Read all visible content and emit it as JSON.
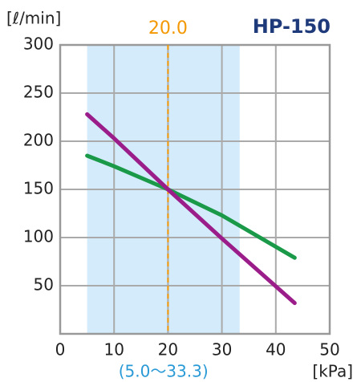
{
  "chart_data": {
    "type": "line",
    "title": "HP-150",
    "ylabel": "[ℓ/min]",
    "xlabel": "[kPa]",
    "x": [
      5,
      10,
      20,
      30,
      43.5
    ],
    "series": [
      {
        "color": "#1a9a48",
        "values": [
          185,
          174,
          150,
          123,
          79
        ]
      },
      {
        "color": "#9b1d8a",
        "values": [
          228,
          203,
          150,
          99,
          32
        ]
      }
    ],
    "xlim": [
      0,
      50
    ],
    "xticks": [
      0,
      10,
      20,
      30,
      40,
      50
    ],
    "ylim": [
      0,
      300
    ],
    "yticks": [
      50,
      100,
      150,
      200,
      250,
      300
    ],
    "grid": true,
    "band": {
      "start": 5.0,
      "end": 33.3,
      "label": "(5.0〜33.3)",
      "color": "#d3ebfa"
    },
    "ref_line": {
      "value": 20,
      "label": "20.0",
      "color": "#f39800"
    }
  }
}
